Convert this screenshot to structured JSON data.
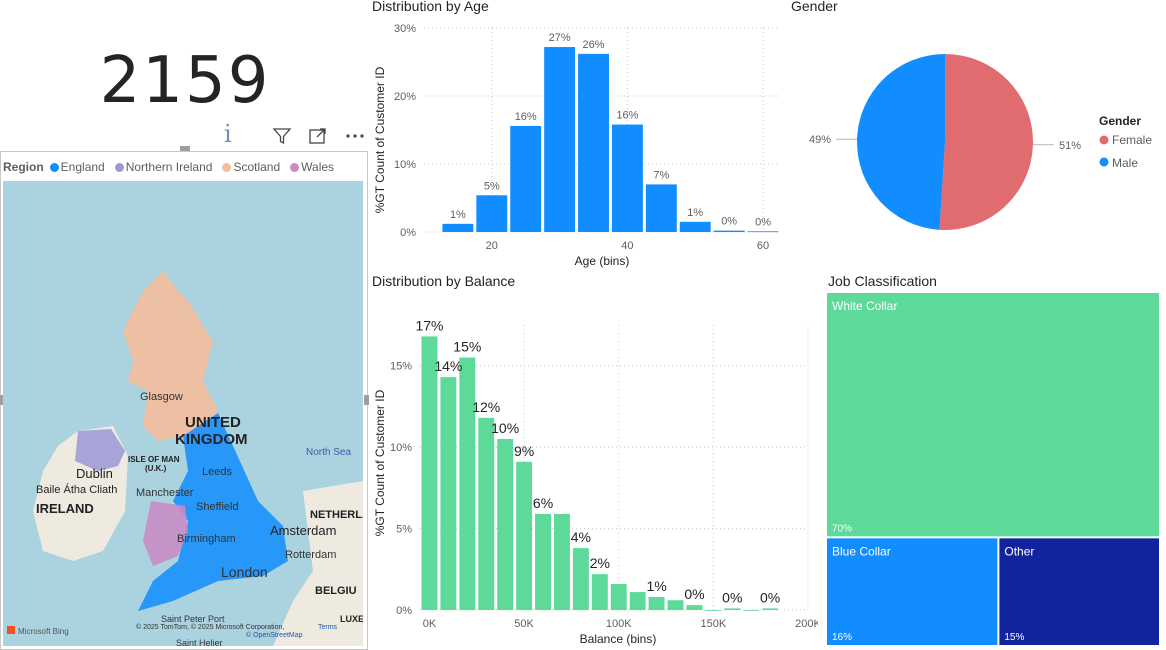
{
  "card": {
    "value": "2159",
    "info": "i"
  },
  "visual_icons": [
    "filter-icon",
    "focus-mode-icon",
    "more-options-icon"
  ],
  "map": {
    "legend_title": "Region",
    "legend": [
      {
        "label": "England",
        "color": "#118DFF"
      },
      {
        "label": "Northern Ireland",
        "color": "#9A99D6"
      },
      {
        "label": "Scotland",
        "color": "#F4BE9D"
      },
      {
        "label": "Wales",
        "color": "#C68CC4"
      }
    ],
    "labels": {
      "uk1": "UNITED",
      "uk2": "KINGDOM",
      "ireland": "IRELAND",
      "dublin": "Dublin",
      "baile": "Baile Átha Cliath",
      "isle1": "ISLE OF MAN",
      "isle2": "(U.K.)",
      "glasgow": "Glasgow",
      "leeds": "Leeds",
      "manchester": "Manchester",
      "sheffield": "Sheffield",
      "birmingham": "Birmingham",
      "london": "London",
      "amsterdam": "Amsterdam",
      "rotterdam": "Rotterdam",
      "netherlands": "NETHERLA",
      "belgium": "BELGIU",
      "luxem": "LUXEN",
      "northsea": "North Sea",
      "saintpeter": "Saint Peter Port",
      "sainthelier": "Saint Helier",
      "copyright": "© 2025 TomTom, © 2025 Microsoft Corporation,",
      "terms": "Terms",
      "osm": "© OpenStreetMap",
      "bing": "Microsoft Bing"
    }
  },
  "age_chart": {
    "title": "Distribution by Age",
    "chart_data": {
      "type": "bar",
      "title": "Distribution by Age",
      "xlabel": "Age (bins)",
      "ylabel": "%GT Count of Customer ID",
      "x": [
        15,
        20,
        25,
        30,
        35,
        40,
        45,
        50,
        55,
        60
      ],
      "values": [
        1.2,
        5.4,
        15.6,
        27.2,
        26.2,
        15.8,
        7.0,
        1.5,
        0.2,
        0.1
      ],
      "data_labels": [
        "1%",
        "5%",
        "16%",
        "27%",
        "26%",
        "16%",
        "7%",
        "1%",
        "0%",
        "0%"
      ],
      "xticks": [
        "20",
        "40",
        "60"
      ],
      "xtick_values": [
        20,
        40,
        60
      ],
      "yticks": [
        "0%",
        "10%",
        "20%",
        "30%"
      ],
      "ytick_values": [
        0,
        10,
        20,
        30
      ],
      "xlim": [
        10,
        62.5
      ],
      "ylim": [
        0,
        30
      ],
      "color": "#118DFF",
      "grid": true
    }
  },
  "gender_chart": {
    "title": "Gender",
    "chart_data": {
      "type": "pie",
      "title": "Gender",
      "categories": [
        "Female",
        "Male"
      ],
      "values": [
        51,
        49
      ],
      "data_labels": [
        "51%",
        "49%"
      ],
      "colors": [
        "#E06C70",
        "#118DFF"
      ],
      "legend_title": "Gender",
      "legend_position": "right"
    }
  },
  "balance_chart": {
    "title": "Distribution by Balance",
    "chart_data": {
      "type": "bar",
      "title": "Distribution by Balance",
      "xlabel": "Balance (bins)",
      "ylabel": "%GT Count of Customer ID",
      "x": [
        0,
        10000,
        20000,
        30000,
        40000,
        50000,
        60000,
        70000,
        80000,
        90000,
        100000,
        110000,
        120000,
        130000,
        140000,
        150000,
        160000,
        170000,
        180000
      ],
      "values": [
        16.8,
        14.3,
        15.5,
        11.8,
        10.5,
        9.1,
        5.9,
        5.9,
        3.8,
        2.2,
        1.6,
        1.1,
        0.8,
        0.6,
        0.3,
        0.0,
        0.1,
        0.0,
        0.1
      ],
      "data_labels": [
        "17%",
        "14%",
        "15%",
        "12%",
        "10%",
        "9%",
        "6%",
        "",
        "4%",
        "2%",
        "",
        "",
        "1%",
        "",
        "0%",
        "",
        "0%",
        "",
        "0%"
      ],
      "xticks": [
        "0K",
        "50K",
        "100K",
        "150K",
        "200K"
      ],
      "xtick_values": [
        0,
        50000,
        100000,
        150000,
        200000
      ],
      "yticks": [
        "0%",
        "5%",
        "10%",
        "15%"
      ],
      "ytick_values": [
        0,
        5,
        10,
        15
      ],
      "xlim": [
        -5000,
        200000
      ],
      "ylim": [
        0,
        17.5
      ],
      "color": "#5DD99A",
      "grid": true
    }
  },
  "job_chart": {
    "title": "Job Classification",
    "chart_data": {
      "type": "treemap",
      "title": "Job Classification",
      "categories": [
        "White Collar",
        "Blue Collar",
        "Other"
      ],
      "values": [
        70,
        16,
        15
      ],
      "data_labels": [
        "70%",
        "16%",
        "15%"
      ],
      "colors": [
        "#5DD99A",
        "#118DFF",
        "#12239E"
      ]
    }
  }
}
